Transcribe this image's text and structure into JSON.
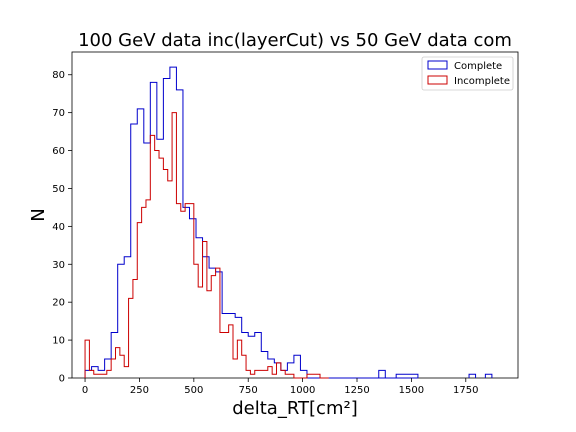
{
  "chart_data": {
    "type": "histogram",
    "title": "100 GeV data inc(layerCut) vs 50 GeV data com",
    "xlabel": "delta_RT[cm²]",
    "ylabel": "N",
    "xlim": [
      -60,
      1990
    ],
    "ylim": [
      0,
      86
    ],
    "xticks": [
      0,
      250,
      500,
      750,
      1000,
      1250,
      1500,
      1750
    ],
    "yticks": [
      0,
      10,
      20,
      30,
      40,
      50,
      60,
      70,
      80
    ],
    "grid": false,
    "legend_position": "top-right",
    "colors": {
      "Complete": "#0000cc",
      "Incomplete": "#cc0000"
    },
    "series": [
      {
        "name": "Complete",
        "bin_edges": [
          0,
          30,
          60,
          90,
          120,
          150,
          180,
          210,
          240,
          270,
          300,
          330,
          360,
          390,
          420,
          450,
          480,
          510,
          540,
          570,
          600,
          630,
          660,
          690,
          720,
          750,
          780,
          810,
          840,
          870,
          900,
          930,
          960,
          990,
          1020,
          1050,
          1080,
          1110,
          1140,
          1170,
          1200,
          1230,
          1260,
          1290,
          1320,
          1350,
          1380,
          1410,
          1440,
          1470,
          1500,
          1530
        ],
        "counts": [
          2,
          3,
          2,
          5,
          12,
          30,
          32,
          67,
          71,
          62,
          78,
          63,
          79,
          82,
          76,
          45,
          42,
          37,
          32,
          29,
          28,
          17,
          17,
          16,
          12,
          11,
          12,
          7,
          5,
          4,
          2,
          4,
          6,
          2,
          0,
          0,
          0,
          0,
          0,
          0,
          0,
          0,
          0,
          0,
          0,
          0,
          0,
          0,
          0,
          0,
          0
        ],
        "extra_bins": [
          {
            "x0": 1350,
            "x1": 1380,
            "count": 2
          },
          {
            "x0": 1430,
            "x1": 1530,
            "count": 1
          },
          {
            "x0": 1765,
            "x1": 1795,
            "count": 1
          },
          {
            "x0": 1840,
            "x1": 1870,
            "count": 1
          }
        ]
      },
      {
        "name": "Incomplete",
        "bin_edges": [
          0,
          20,
          40,
          60,
          80,
          100,
          120,
          140,
          160,
          180,
          200,
          220,
          240,
          260,
          280,
          300,
          320,
          340,
          360,
          380,
          400,
          420,
          440,
          460,
          480,
          500,
          520,
          540,
          560,
          580,
          600,
          620,
          640,
          660,
          680,
          700,
          720,
          740,
          760,
          780,
          800,
          820,
          840,
          860,
          880,
          900,
          920,
          940,
          960,
          980,
          1000,
          1020,
          1040,
          1060,
          1080,
          1100,
          1120
        ],
        "counts": [
          10,
          2,
          1,
          1,
          1,
          2,
          5,
          8,
          6,
          3,
          21,
          26,
          41,
          45,
          47,
          64,
          60,
          58,
          55,
          52,
          70,
          46,
          44,
          46,
          46,
          30,
          24,
          36,
          23,
          27,
          29,
          12,
          12,
          14,
          5,
          10,
          6,
          2,
          1,
          2,
          2,
          2,
          3,
          1,
          4,
          2,
          1,
          1,
          0,
          0,
          0,
          1,
          1,
          1,
          0,
          0
        ]
      }
    ]
  }
}
